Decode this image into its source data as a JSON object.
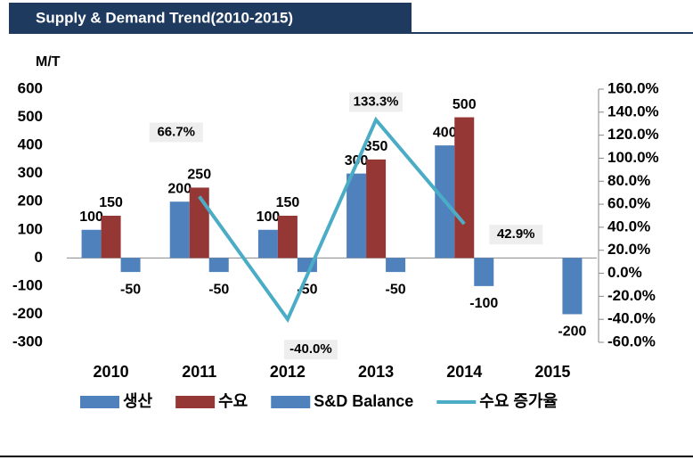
{
  "header": {
    "title": "Supply & Demand Trend(2010-2015)"
  },
  "chart_data": {
    "type": "bar",
    "ylabel": "M/T",
    "categories": [
      "2010",
      "2011",
      "2012",
      "2013",
      "2014",
      "2015"
    ],
    "ylim": [
      -300,
      600
    ],
    "yticks": [
      -300,
      -200,
      -100,
      0,
      100,
      200,
      300,
      400,
      500,
      600
    ],
    "y2lim": [
      -60,
      160
    ],
    "y2ticks": [
      {
        "value": -60,
        "label": "-60.0%"
      },
      {
        "value": -40,
        "label": "-40.0%"
      },
      {
        "value": -20,
        "label": "-20.0%"
      },
      {
        "value": 0,
        "label": "0.0%"
      },
      {
        "value": 20,
        "label": "20.0%"
      },
      {
        "value": 40,
        "label": "40.0%"
      },
      {
        "value": 60,
        "label": "60.0%"
      },
      {
        "value": 80,
        "label": "80.0%"
      },
      {
        "value": 100,
        "label": "100.0%"
      },
      {
        "value": 120,
        "label": "120.0%"
      },
      {
        "value": 140,
        "label": "140.0%"
      },
      {
        "value": 160,
        "label": "160.0%"
      }
    ],
    "grid": false,
    "series": [
      {
        "name": "생산",
        "color": "#4f81bd",
        "values": [
          100,
          200,
          100,
          300,
          400,
          null
        ]
      },
      {
        "name": "수요",
        "color": "#953735",
        "values": [
          150,
          250,
          150,
          350,
          500,
          null
        ]
      },
      {
        "name": "S&D Balance",
        "color": "#4f81bd",
        "values": [
          -50,
          -50,
          -50,
          -50,
          -100,
          -200
        ]
      },
      {
        "name": "수요 증가율",
        "color": "#4bacc6",
        "type": "line",
        "axis": "y2",
        "values": [
          null,
          66.7,
          -40.0,
          133.3,
          42.9,
          null
        ],
        "value_labels": [
          null,
          "66.7%",
          "-40.0%",
          "133.3%",
          "42.9%",
          null
        ]
      }
    ]
  }
}
